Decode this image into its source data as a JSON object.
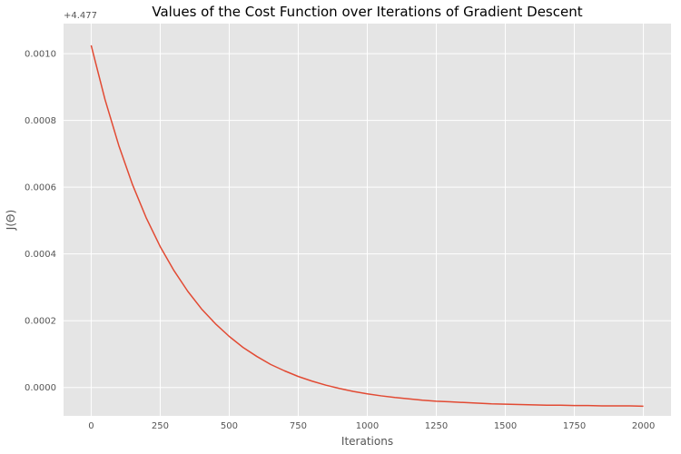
{
  "chart_data": {
    "type": "line",
    "title": "Values of the Cost Function over Iterations of Gradient Descent",
    "xlabel": "Iterations",
    "ylabel": "J(Θ)",
    "y_offset_label": "+4.477",
    "xlim": [
      -100,
      2100
    ],
    "ylim": [
      -8.5e-05,
      0.00109
    ],
    "x_ticks": [
      0,
      250,
      500,
      750,
      1000,
      1250,
      1500,
      1750,
      2000
    ],
    "x_tick_labels": [
      "0",
      "250",
      "500",
      "750",
      "1000",
      "1250",
      "1500",
      "1750",
      "2000"
    ],
    "y_ticks": [
      0,
      0.0002,
      0.0004,
      0.0006,
      0.0008,
      0.001
    ],
    "y_tick_labels": [
      "0.0000",
      "0.0002",
      "0.0004",
      "0.0006",
      "0.0008",
      "0.0010"
    ],
    "grid": true,
    "series": [
      {
        "color": "#E24A33",
        "x": [
          0,
          50,
          100,
          150,
          200,
          250,
          300,
          350,
          400,
          450,
          500,
          550,
          600,
          650,
          700,
          750,
          800,
          850,
          900,
          950,
          1000,
          1050,
          1100,
          1150,
          1200,
          1250,
          1300,
          1350,
          1400,
          1450,
          1500,
          1550,
          1600,
          1650,
          1700,
          1750,
          1800,
          1850,
          1900,
          1950,
          2000
        ],
        "y": [
          0.001025,
          0.000863,
          0.000725,
          0.000607,
          0.000507,
          0.000422,
          0.00035,
          0.000288,
          0.000235,
          0.000191,
          0.000153,
          0.00012,
          9.3e-05,
          6.9e-05,
          5e-05,
          3.3e-05,
          1.9e-05,
          7e-06,
          -3e-06,
          -1.2e-05,
          -1.9e-05,
          -2.5e-05,
          -3e-05,
          -3.4e-05,
          -3.8e-05,
          -4.1e-05,
          -4.3e-05,
          -4.5e-05,
          -4.7e-05,
          -4.9e-05,
          -5e-05,
          -5.1e-05,
          -5.2e-05,
          -5.3e-05,
          -5.3e-05,
          -5.4e-05,
          -5.4e-05,
          -5.5e-05,
          -5.5e-05,
          -5.5e-05,
          -5.6e-05
        ]
      }
    ]
  },
  "colors": {
    "plot_background": "#E5E5E5",
    "grid": "#FFFFFF",
    "line": "#E24A33"
  }
}
